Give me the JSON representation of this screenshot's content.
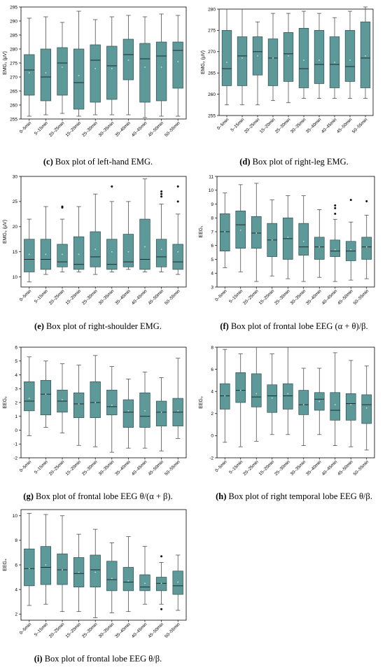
{
  "figure": {
    "categories": [
      "0–5min",
      "5–15min",
      "20–25min",
      "15–20min",
      "25–30min",
      "30–35min",
      "35–40min",
      "40–45min",
      "45–50min",
      "50–55min"
    ],
    "colors": {
      "box_fill": "#5e9999",
      "box_stroke": "#2e4f4f",
      "median": "#1c2e2e"
    }
  },
  "panels": [
    {
      "caption_letter": "(c)",
      "caption_text": "Box plot of left-hand EMG.",
      "ylabel": "EMG₁ (μV)"
    },
    {
      "caption_letter": "(d)",
      "caption_text": "Box plot of right-leg EMG.",
      "ylabel": "EMG₂ (μV)"
    },
    {
      "caption_letter": "(e)",
      "caption_text": "Box plot of right-shoulder EMG.",
      "ylabel": "EMG₃ (μV)"
    },
    {
      "caption_letter": "(f)",
      "caption_text": "Box plot of frontal lobe EEG (α + θ)/β.",
      "ylabel": "EEG₁"
    },
    {
      "caption_letter": "(g)",
      "caption_text": "Box plot of frontal lobe EEG θ/(α + β).",
      "ylabel": "EEG₂"
    },
    {
      "caption_letter": "(h)",
      "caption_text": "Box plot of right temporal lobe EEG θ/β.",
      "ylabel": "EEG₃"
    },
    {
      "caption_letter": "(i)",
      "caption_text": "Box plot of frontal lobe EEG θ/β.",
      "ylabel": "EEG₄"
    }
  ],
  "chart_data": [
    {
      "type": "box",
      "ylim": [
        255,
        295
      ],
      "yticks": [
        255,
        260,
        265,
        270,
        275,
        280,
        285,
        290,
        295
      ],
      "categories": [
        "0–5min",
        "5–15min",
        "20–25min",
        "15–20min",
        "25–30min",
        "30–35min",
        "35–40min",
        "40–45min",
        "45–50min",
        "50–55min"
      ],
      "boxes": [
        {
          "min": 256,
          "q1": 263.5,
          "median": 272.5,
          "q3": 278,
          "max": 291,
          "mean": 271.5,
          "outliers": []
        },
        {
          "min": 256.5,
          "q1": 261.5,
          "median": 270,
          "q3": 280,
          "max": 291.5,
          "mean": 271.5,
          "outliers": []
        },
        {
          "min": 257,
          "q1": 263.5,
          "median": 275,
          "q3": 280.5,
          "max": 289.5,
          "mean": 273.5,
          "outliers": []
        },
        {
          "min": 256,
          "q1": 258.5,
          "median": 268,
          "q3": 280,
          "max": 293.5,
          "mean": 270.5,
          "outliers": []
        },
        {
          "min": 256.5,
          "q1": 261,
          "median": 276,
          "q3": 281.5,
          "max": 290.5,
          "mean": 273,
          "outliers": []
        },
        {
          "min": 256.5,
          "q1": 262,
          "median": 274,
          "q3": 281,
          "max": 291.5,
          "mean": 273,
          "outliers": []
        },
        {
          "min": 256.5,
          "q1": 269,
          "median": 278,
          "q3": 283.5,
          "max": 292,
          "mean": 276,
          "outliers": []
        },
        {
          "min": 255.5,
          "q1": 261,
          "median": 276.5,
          "q3": 282,
          "max": 291.5,
          "mean": 273.5,
          "outliers": []
        },
        {
          "min": 256,
          "q1": 261.5,
          "median": 277.5,
          "q3": 282.5,
          "max": 292.5,
          "mean": 273.5,
          "outliers": []
        },
        {
          "min": 256,
          "q1": 266,
          "median": 279.5,
          "q3": 282.5,
          "max": 292,
          "mean": 275.5,
          "outliers": []
        }
      ]
    },
    {
      "type": "box",
      "ylim": [
        255,
        280
      ],
      "yticks": [
        255,
        260,
        265,
        270,
        275,
        280
      ],
      "categories": [
        "0–5min",
        "5–15min",
        "20–25min",
        "15–20min",
        "25–30min",
        "30–35min",
        "35–40min",
        "40–45min",
        "45–50min",
        "50–55min"
      ],
      "boxes": [
        {
          "min": 257.5,
          "q1": 262,
          "median": 266,
          "q3": 275,
          "max": 280,
          "mean": 267.5,
          "outliers": []
        },
        {
          "min": 257.5,
          "q1": 262,
          "median": 269,
          "q3": 273.5,
          "max": 280,
          "mean": 268.5,
          "outliers": []
        },
        {
          "min": 257.5,
          "q1": 264.5,
          "median": 270,
          "q3": 273.5,
          "max": 277,
          "mean": 269,
          "outliers": []
        },
        {
          "min": 258.5,
          "q1": 262,
          "median": 268.5,
          "q3": 273,
          "max": 279,
          "mean": 268.5,
          "outliers": []
        },
        {
          "min": 258,
          "q1": 263,
          "median": 269.5,
          "q3": 274.5,
          "max": 279,
          "mean": 269,
          "outliers": []
        },
        {
          "min": 259,
          "q1": 261.5,
          "median": 266,
          "q3": 275.5,
          "max": 279.5,
          "mean": 268,
          "outliers": []
        },
        {
          "min": 259,
          "q1": 262.5,
          "median": 267,
          "q3": 275,
          "max": 279,
          "mean": 268,
          "outliers": []
        },
        {
          "min": 259,
          "q1": 261.5,
          "median": 267,
          "q3": 273.5,
          "max": 278,
          "mean": 267.5,
          "outliers": []
        },
        {
          "min": 259,
          "q1": 263,
          "median": 266.5,
          "q3": 275,
          "max": 279.5,
          "mean": 268,
          "outliers": []
        },
        {
          "min": 259,
          "q1": 261.5,
          "median": 268.5,
          "q3": 277,
          "max": 280.5,
          "mean": 269,
          "outliers": []
        }
      ]
    },
    {
      "type": "box",
      "ylim": [
        8,
        30
      ],
      "yticks": [
        10,
        15,
        20,
        25,
        30
      ],
      "categories": [
        "0–5min",
        "5–15min",
        "20–25min",
        "15–20min",
        "25–30min",
        "30–35min",
        "35–40min",
        "40–45min",
        "45–50min",
        "50–55min"
      ],
      "boxes": [
        {
          "min": 9,
          "q1": 11,
          "median": 13.5,
          "q3": 17.5,
          "max": 21.5,
          "mean": 14.5,
          "outliers": []
        },
        {
          "min": 10.5,
          "q1": 11.5,
          "median": 13.5,
          "q3": 17.5,
          "max": 24,
          "mean": 14.5,
          "outliers": []
        },
        {
          "min": 11,
          "q1": 12,
          "median": 13,
          "q3": 16.5,
          "max": 21.5,
          "mean": 14.5,
          "outliers": [
            24,
            23.8
          ]
        },
        {
          "min": 11,
          "q1": 11.5,
          "median": 12.5,
          "q3": 18,
          "max": 24,
          "mean": 14.5,
          "outliers": []
        },
        {
          "min": 10.5,
          "q1": 12,
          "median": 14,
          "q3": 19,
          "max": 26.5,
          "mean": 15.5,
          "outliers": []
        },
        {
          "min": 11,
          "q1": 11.5,
          "median": 12.5,
          "q3": 17.5,
          "max": 25,
          "mean": 15,
          "outliers": [
            28
          ]
        },
        {
          "min": 11.5,
          "q1": 12,
          "median": 13,
          "q3": 18.5,
          "max": 25,
          "mean": 15,
          "outliers": []
        },
        {
          "min": 11,
          "q1": 11.5,
          "median": 13.5,
          "q3": 21.5,
          "max": 29.5,
          "mean": 16,
          "outliers": []
        },
        {
          "min": 11,
          "q1": 12,
          "median": 14,
          "q3": 17.5,
          "max": 24.5,
          "mean": 15.5,
          "outliers": [
            26,
            26.5,
            27
          ]
        },
        {
          "min": 10.5,
          "q1": 11.5,
          "median": 13,
          "q3": 16.5,
          "max": 22.5,
          "mean": 15,
          "outliers": [
            25,
            28
          ]
        }
      ]
    },
    {
      "type": "box",
      "ylim": [
        3,
        11
      ],
      "yticks": [
        3,
        4,
        5,
        6,
        7,
        8,
        9,
        10,
        11
      ],
      "categories": [
        "0–5min",
        "5–15min",
        "20–25min",
        "15–20min",
        "25–30min",
        "30–35min",
        "35–40min",
        "40–45min",
        "45–50min",
        "50–55min"
      ],
      "boxes": [
        {
          "min": 4.4,
          "q1": 5.6,
          "median": 7,
          "q3": 8.3,
          "max": 9.8,
          "mean": 7,
          "outliers": []
        },
        {
          "min": 4.1,
          "q1": 5.8,
          "median": 7.5,
          "q3": 8.5,
          "max": 10.4,
          "mean": 7.1,
          "outliers": []
        },
        {
          "min": 3.4,
          "q1": 5.8,
          "median": 6.9,
          "q3": 8.1,
          "max": 10.5,
          "mean": 6.9,
          "outliers": []
        },
        {
          "min": 3.8,
          "q1": 5.2,
          "median": 6.4,
          "q3": 7.6,
          "max": 9.3,
          "mean": 6.4,
          "outliers": []
        },
        {
          "min": 3.6,
          "q1": 5,
          "median": 6.5,
          "q3": 8,
          "max": 9.6,
          "mean": 6.6,
          "outliers": []
        },
        {
          "min": 3.4,
          "q1": 5.3,
          "median": 5.9,
          "q3": 7.6,
          "max": 9.6,
          "mean": 6.3,
          "outliers": []
        },
        {
          "min": 3.7,
          "q1": 5,
          "median": 5.9,
          "q3": 6.6,
          "max": 8.6,
          "mean": 5.9,
          "outliers": []
        },
        {
          "min": 3.4,
          "q1": 5.2,
          "median": 5.6,
          "q3": 6.4,
          "max": 7.9,
          "mean": 5.7,
          "outliers": [
            8.3,
            8.7,
            8.9
          ]
        },
        {
          "min": 3.5,
          "q1": 4.9,
          "median": 5.6,
          "q3": 6.3,
          "max": 7.7,
          "mean": 5.7,
          "outliers": [
            9.3
          ]
        },
        {
          "min": 3.6,
          "q1": 5,
          "median": 5.9,
          "q3": 6.6,
          "max": 8.2,
          "mean": 5.9,
          "outliers": [
            9.2
          ]
        }
      ]
    },
    {
      "type": "box",
      "ylim": [
        -2,
        6
      ],
      "yticks": [
        -2,
        -1,
        0,
        1,
        2,
        3,
        4,
        5,
        6
      ],
      "categories": [
        "0–5min",
        "5–15min",
        "20–25min",
        "15–20min",
        "25–30min",
        "30–35min",
        "35–40min",
        "40–45min",
        "45–50min",
        "50–55min"
      ],
      "boxes": [
        {
          "min": -0.4,
          "q1": 1.4,
          "median": 2.1,
          "q3": 3.5,
          "max": 5.3,
          "mean": 2.3,
          "outliers": []
        },
        {
          "min": 0.2,
          "q1": 1.1,
          "median": 2.6,
          "q3": 3.6,
          "max": 5,
          "mean": 2.6,
          "outliers": []
        },
        {
          "min": -0.2,
          "q1": 1.3,
          "median": 2.1,
          "q3": 2.9,
          "max": 4.8,
          "mean": 2.2,
          "outliers": []
        },
        {
          "min": -1.1,
          "q1": 0.9,
          "median": 1.9,
          "q3": 2.7,
          "max": 4.7,
          "mean": 1.9,
          "outliers": []
        },
        {
          "min": -1.2,
          "q1": 0.9,
          "median": 2,
          "q3": 3.5,
          "max": 5.4,
          "mean": 2,
          "outliers": []
        },
        {
          "min": -1.6,
          "q1": 1.1,
          "median": 1.7,
          "q3": 2.9,
          "max": 4.6,
          "mean": 1.8,
          "outliers": []
        },
        {
          "min": -1.3,
          "q1": 0.2,
          "median": 1.3,
          "q3": 2.2,
          "max": 3.7,
          "mean": 1.4,
          "outliers": []
        },
        {
          "min": -1.3,
          "q1": 0.2,
          "median": 1,
          "q3": 2.7,
          "max": 4.2,
          "mean": 1.4,
          "outliers": []
        },
        {
          "min": -1.5,
          "q1": 0.3,
          "median": 1.3,
          "q3": 2.1,
          "max": 3.8,
          "mean": 1.3,
          "outliers": []
        },
        {
          "min": -0.6,
          "q1": 0.3,
          "median": 1.3,
          "q3": 2.3,
          "max": 5.2,
          "mean": 1.4,
          "outliers": []
        }
      ]
    },
    {
      "type": "box",
      "ylim": [
        -2,
        8
      ],
      "yticks": [
        -2,
        0,
        2,
        4,
        6,
        8
      ],
      "categories": [
        "0–5min",
        "5–15min",
        "20–25min",
        "15–20min",
        "25–30min",
        "30–35min",
        "35–40min",
        "40–45min",
        "45–50min",
        "50–55min"
      ],
      "boxes": [
        {
          "min": -0.6,
          "q1": 2.4,
          "median": 3.6,
          "q3": 4.7,
          "max": 7.8,
          "mean": 3.6,
          "outliers": []
        },
        {
          "min": -1,
          "q1": 3,
          "median": 4.1,
          "q3": 5.7,
          "max": 7.4,
          "mean": 4.1,
          "outliers": []
        },
        {
          "min": -0.5,
          "q1": 2.6,
          "median": 3.5,
          "q3": 5.6,
          "max": 8,
          "mean": 3.8,
          "outliers": []
        },
        {
          "min": 0.1,
          "q1": 2.1,
          "median": 3.6,
          "q3": 4.6,
          "max": 7.4,
          "mean": 3.4,
          "outliers": []
        },
        {
          "min": 0.1,
          "q1": 2.4,
          "median": 3.6,
          "q3": 4.7,
          "max": 8,
          "mean": 3.8,
          "outliers": []
        },
        {
          "min": -0.9,
          "q1": 1.9,
          "median": 2.8,
          "q3": 4.1,
          "max": 6.1,
          "mean": 2.8,
          "outliers": []
        },
        {
          "min": 0.1,
          "q1": 2.3,
          "median": 3.3,
          "q3": 3.9,
          "max": 6.1,
          "mean": 3.1,
          "outliers": []
        },
        {
          "min": -0.9,
          "q1": 1.4,
          "median": 2.3,
          "q3": 3.9,
          "max": 7.5,
          "mean": 2.8,
          "outliers": []
        },
        {
          "min": -1,
          "q1": 1.4,
          "median": 2.9,
          "q3": 3.8,
          "max": 6.8,
          "mean": 2.8,
          "outliers": []
        },
        {
          "min": -1.3,
          "q1": 1.1,
          "median": 2.8,
          "q3": 3.7,
          "max": 6.3,
          "mean": 2.5,
          "outliers": []
        }
      ]
    },
    {
      "type": "box",
      "ylim": [
        1.5,
        10.5
      ],
      "yticks": [
        2,
        4,
        6,
        8,
        10
      ],
      "categories": [
        "0–5min",
        "5–15min",
        "20–25min",
        "15–20min",
        "25–30min",
        "30–35min",
        "35–40min",
        "40–45min",
        "45–50min",
        "50–55min"
      ],
      "boxes": [
        {
          "min": 2.7,
          "q1": 4.3,
          "median": 5.7,
          "q3": 7.3,
          "max": 10.2,
          "mean": 5.7,
          "outliers": []
        },
        {
          "min": 2.8,
          "q1": 4.4,
          "median": 5.8,
          "q3": 7.5,
          "max": 10.1,
          "mean": 6,
          "outliers": []
        },
        {
          "min": 2.2,
          "q1": 4.4,
          "median": 5.6,
          "q3": 6.9,
          "max": 10,
          "mean": 5.6,
          "outliers": []
        },
        {
          "min": 2.2,
          "q1": 4.2,
          "median": 5.3,
          "q3": 6.6,
          "max": 8.5,
          "mean": 5.4,
          "outliers": []
        },
        {
          "min": 1.7,
          "q1": 4.2,
          "median": 5.6,
          "q3": 6.8,
          "max": 8.9,
          "mean": 5.4,
          "outliers": []
        },
        {
          "min": 2.1,
          "q1": 3.9,
          "median": 4.8,
          "q3": 6.3,
          "max": 7.8,
          "mean": 4.9,
          "outliers": []
        },
        {
          "min": 2.2,
          "q1": 3.9,
          "median": 4.6,
          "q3": 5.8,
          "max": 8.3,
          "mean": 4.7,
          "outliers": []
        },
        {
          "min": 2.8,
          "q1": 3.9,
          "median": 4.2,
          "q3": 5.2,
          "max": 7.5,
          "mean": 4.5,
          "outliers": []
        },
        {
          "min": 2.8,
          "q1": 3.9,
          "median": 4.5,
          "q3": 5,
          "max": 6.2,
          "mean": 4.5,
          "outliers": [
            6.7,
            2.4
          ]
        },
        {
          "min": 2.3,
          "q1": 3.6,
          "median": 4.3,
          "q3": 5.5,
          "max": 6.8,
          "mean": 4.6,
          "outliers": []
        }
      ]
    }
  ]
}
